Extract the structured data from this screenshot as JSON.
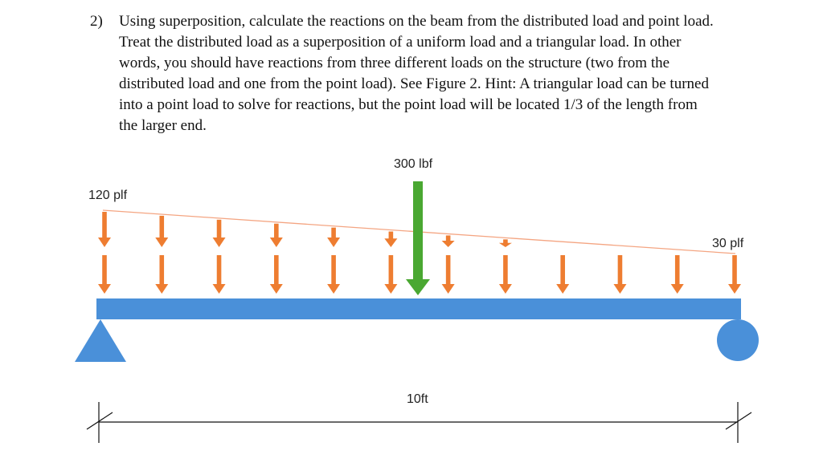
{
  "problem": {
    "number": "2)",
    "lines": [
      "Using superposition, calculate the reactions on the beam from the distributed load and point load.",
      "Treat the distributed load as a superposition of a uniform load and a triangular load. In other",
      "words, you should have reactions from three different loads on the structure (two from the",
      "distributed load and one from the point load). See Figure 2. Hint: A triangular load can be turned",
      "into a point load to solve for reactions, but the point load will be located 1/3 of the length from",
      "the larger end."
    ]
  },
  "figure": {
    "point_load_label": "300 lbf",
    "left_intensity_label": "120 plf",
    "right_intensity_label": "30 plf",
    "span_label": "10ft",
    "colors": {
      "beam": "#4a90d9",
      "supports": "#4a90d9",
      "distributed_arrows": "#ee7d31",
      "point_load_arrow": "#4aa832",
      "load_profile_line": "#f4a582",
      "dimension_line": "#111111"
    },
    "distributed_arrow_count": 12
  }
}
